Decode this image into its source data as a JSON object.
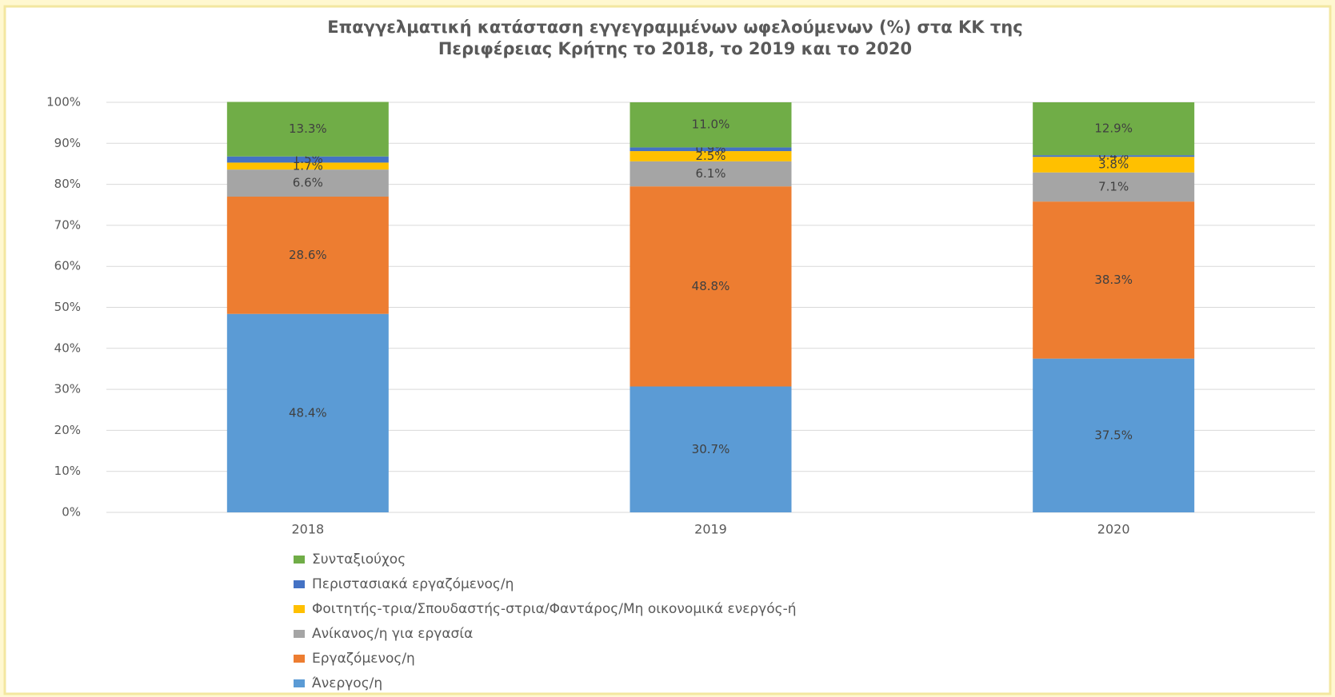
{
  "chart_data": {
    "type": "stacked_bar",
    "title": [
      "Επαγγελματική κατάσταση εγγεγραμμένων ωφελούμενων (%) στα ΚΚ της",
      "Περιφέρειας  Κρήτης το 2018, το 2019 και το 2020"
    ],
    "categories": [
      "2018",
      "2019",
      "2020"
    ],
    "series": [
      {
        "name": "Άνεργος/η",
        "color": "#5b9bd5",
        "values": [
          48.4,
          30.7,
          37.5
        ],
        "value_labels": [
          "48.4%",
          "30.7%",
          "37.5%"
        ]
      },
      {
        "name": "Εργαζόμενος/η",
        "color": "#ed7d31",
        "values": [
          28.6,
          48.8,
          38.3
        ],
        "value_labels": [
          "28.6%",
          "48.8%",
          "38.3%"
        ]
      },
      {
        "name": "Ανίκανος/η για εργασία",
        "color": "#a5a5a5",
        "values": [
          6.6,
          6.1,
          7.1
        ],
        "value_labels": [
          "6.6%",
          "6.1%",
          "7.1%"
        ]
      },
      {
        "name": "Φοιτητής-τρια/Σπουδαστής-στρια/Φαντάρος/Μη οικονομικά ενεργός-ή",
        "color": "#ffc000",
        "values": [
          1.7,
          2.5,
          3.8
        ],
        "value_labels": [
          "1.7%",
          "2.5%",
          "3.8%"
        ]
      },
      {
        "name": "Περιστασιακά εργαζόμενος/η",
        "color": "#4472c4",
        "values": [
          1.5,
          0.9,
          0.4
        ],
        "value_labels": [
          "1.5%",
          "0.9%",
          "0.4%"
        ]
      },
      {
        "name": "Συνταξιούχος",
        "color": "#70ad47",
        "values": [
          13.3,
          11.0,
          12.9
        ],
        "value_labels": [
          "13.3%",
          "11.0%",
          "12.9%"
        ]
      }
    ],
    "ylim": [
      0,
      100
    ],
    "yticks": [
      {
        "value": 0,
        "label": "0%"
      },
      {
        "value": 10,
        "label": "10%"
      },
      {
        "value": 20,
        "label": "20%"
      },
      {
        "value": 30,
        "label": "30%"
      },
      {
        "value": 40,
        "label": "40%"
      },
      {
        "value": 50,
        "label": "50%"
      },
      {
        "value": 60,
        "label": "60%"
      },
      {
        "value": 70,
        "label": "70%"
      },
      {
        "value": 80,
        "label": "80%"
      },
      {
        "value": 90,
        "label": "90%"
      },
      {
        "value": 100,
        "label": "100%"
      }
    ],
    "grid": true,
    "legend": "bottom"
  }
}
